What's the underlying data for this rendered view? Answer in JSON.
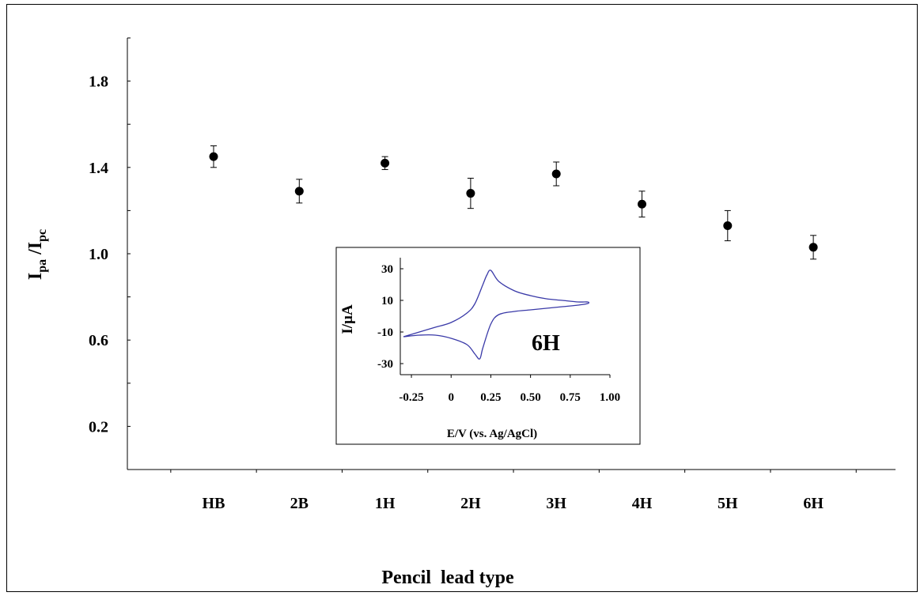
{
  "chart_data": [
    {
      "type": "scatter",
      "title": "",
      "xlabel": "Pencil  lead type",
      "ylabel": "Ipa /Ipc",
      "ylabel_parts": {
        "main1": "I",
        "sub1": "pa",
        "sep": " /",
        "main2": "I",
        "sub2": "pc"
      },
      "categories": [
        "HB",
        "2B",
        "1H",
        "2H",
        "3H",
        "4H",
        "5H",
        "6H"
      ],
      "series": [
        {
          "values": [
            1.45,
            1.29,
            1.42,
            1.28,
            1.37,
            1.23,
            1.13,
            1.03
          ],
          "error": [
            0.05,
            0.055,
            0.03,
            0.07,
            0.055,
            0.06,
            0.07,
            0.055
          ]
        }
      ],
      "ylim": [
        0,
        2.0
      ],
      "yticks": [
        "0.2",
        "0.6",
        "1.0",
        "1.4",
        "1.8"
      ],
      "marker_color": "#000000",
      "grid": false,
      "legend": "none"
    },
    {
      "type": "line",
      "inset": true,
      "xlabel": "E/V (vs. Ag/AgCl)",
      "ylabel": "I/µA",
      "annotation": "6H",
      "xlim": [
        -0.32,
        1.0
      ],
      "ylim": [
        -37,
        37
      ],
      "xticks": [
        "-0.25",
        "0",
        "0.25",
        "0.50",
        "0.75",
        "1.00"
      ],
      "yticks": [
        "30",
        "10",
        "-10",
        "-30"
      ],
      "line_color": "#3a3aa8",
      "series": [
        {
          "x": [
            -0.3,
            -0.2,
            -0.1,
            0.0,
            0.1,
            0.15,
            0.2,
            0.225,
            0.25,
            0.3,
            0.4,
            0.5,
            0.6,
            0.7,
            0.8,
            0.86,
            0.86,
            0.8,
            0.7,
            0.6,
            0.5,
            0.4,
            0.3,
            0.25,
            0.2,
            0.18,
            0.15,
            0.1,
            0.0,
            -0.1,
            -0.2,
            -0.3
          ],
          "y": [
            -13,
            -10,
            -7,
            -4,
            2,
            8,
            20,
            26,
            29,
            22,
            16,
            13,
            11,
            10,
            9,
            9,
            8,
            7,
            6,
            5,
            4,
            3,
            1,
            -5,
            -20,
            -27,
            -24,
            -18,
            -14,
            -12,
            -12,
            -13
          ]
        }
      ]
    }
  ]
}
